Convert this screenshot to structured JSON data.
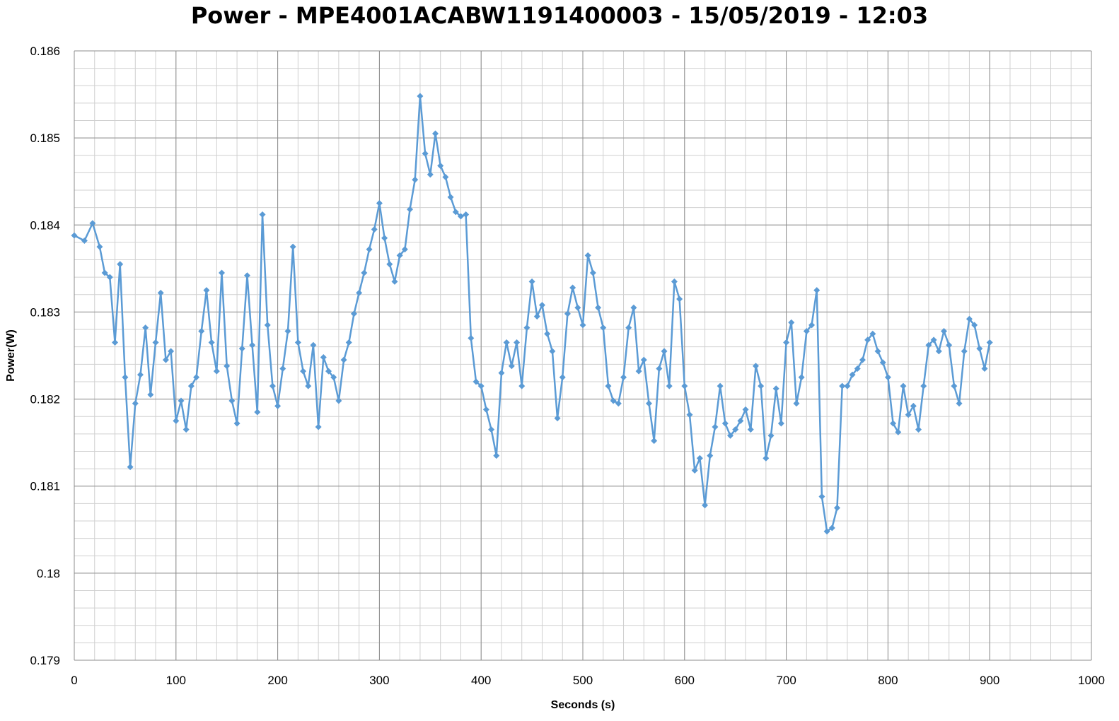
{
  "chart_data": {
    "type": "line",
    "title": "Power - MPE4001ACABW1191400003 - 15/05/2019 - 12:03",
    "xlabel": "Seconds (s)",
    "ylabel": "Power(W)",
    "xlim": [
      0,
      1000
    ],
    "ylim": [
      0.179,
      0.186
    ],
    "x_ticks": [
      "0",
      "100",
      "200",
      "300",
      "400",
      "500",
      "600",
      "700",
      "800",
      "900",
      "1000"
    ],
    "y_ticks": [
      "0.179",
      "0.18",
      "0.181",
      "0.182",
      "0.183",
      "0.184",
      "0.185",
      "0.186"
    ],
    "grid": true,
    "marker": "diamond",
    "series": [
      {
        "color": "#5b9bd5",
        "points": [
          [
            0,
            0.18388
          ],
          [
            10,
            0.18382
          ],
          [
            18,
            0.18402
          ],
          [
            25,
            0.18375
          ],
          [
            30,
            0.18345
          ],
          [
            35,
            0.1834
          ],
          [
            40,
            0.18265
          ],
          [
            45,
            0.18355
          ],
          [
            50,
            0.18225
          ],
          [
            55,
            0.18122
          ],
          [
            60,
            0.18195
          ],
          [
            65,
            0.18228
          ],
          [
            70,
            0.18282
          ],
          [
            75,
            0.18205
          ],
          [
            80,
            0.18265
          ],
          [
            85,
            0.18322
          ],
          [
            90,
            0.18245
          ],
          [
            95,
            0.18255
          ],
          [
            100,
            0.18175
          ],
          [
            105,
            0.18198
          ],
          [
            110,
            0.18165
          ],
          [
            115,
            0.18215
          ],
          [
            120,
            0.18225
          ],
          [
            125,
            0.18278
          ],
          [
            130,
            0.18325
          ],
          [
            135,
            0.18265
          ],
          [
            140,
            0.18232
          ],
          [
            145,
            0.18345
          ],
          [
            150,
            0.18238
          ],
          [
            155,
            0.18198
          ],
          [
            160,
            0.18172
          ],
          [
            165,
            0.18258
          ],
          [
            170,
            0.18342
          ],
          [
            175,
            0.18262
          ],
          [
            180,
            0.18185
          ],
          [
            185,
            0.18412
          ],
          [
            190,
            0.18285
          ],
          [
            195,
            0.18215
          ],
          [
            200,
            0.18192
          ],
          [
            205,
            0.18235
          ],
          [
            210,
            0.18278
          ],
          [
            215,
            0.18375
          ],
          [
            220,
            0.18265
          ],
          [
            225,
            0.18232
          ],
          [
            230,
            0.18215
          ],
          [
            235,
            0.18262
          ],
          [
            240,
            0.18168
          ],
          [
            245,
            0.18248
          ],
          [
            250,
            0.18232
          ],
          [
            255,
            0.18225
          ],
          [
            260,
            0.18198
          ],
          [
            265,
            0.18245
          ],
          [
            270,
            0.18265
          ],
          [
            275,
            0.18298
          ],
          [
            280,
            0.18322
          ],
          [
            285,
            0.18345
          ],
          [
            290,
            0.18372
          ],
          [
            295,
            0.18395
          ],
          [
            300,
            0.18425
          ],
          [
            305,
            0.18385
          ],
          [
            310,
            0.18355
          ],
          [
            315,
            0.18335
          ],
          [
            320,
            0.18365
          ],
          [
            325,
            0.18372
          ],
          [
            330,
            0.18418
          ],
          [
            335,
            0.18452
          ],
          [
            340,
            0.18548
          ],
          [
            345,
            0.18482
          ],
          [
            350,
            0.18458
          ],
          [
            355,
            0.18505
          ],
          [
            360,
            0.18468
          ],
          [
            365,
            0.18455
          ],
          [
            370,
            0.18432
          ],
          [
            375,
            0.18415
          ],
          [
            380,
            0.1841
          ],
          [
            385,
            0.18412
          ],
          [
            390,
            0.1827
          ],
          [
            395,
            0.1822
          ],
          [
            400,
            0.18215
          ],
          [
            405,
            0.18188
          ],
          [
            410,
            0.18165
          ],
          [
            415,
            0.18135
          ],
          [
            420,
            0.1823
          ],
          [
            425,
            0.18265
          ],
          [
            430,
            0.18238
          ],
          [
            435,
            0.18265
          ],
          [
            440,
            0.18215
          ],
          [
            445,
            0.18282
          ],
          [
            450,
            0.18335
          ],
          [
            455,
            0.18295
          ],
          [
            460,
            0.18308
          ],
          [
            465,
            0.18275
          ],
          [
            470,
            0.18255
          ],
          [
            475,
            0.18178
          ],
          [
            480,
            0.18225
          ],
          [
            485,
            0.18298
          ],
          [
            490,
            0.18328
          ],
          [
            495,
            0.18305
          ],
          [
            500,
            0.18285
          ],
          [
            505,
            0.18365
          ],
          [
            510,
            0.18345
          ],
          [
            515,
            0.18305
          ],
          [
            520,
            0.18282
          ],
          [
            525,
            0.18215
          ],
          [
            530,
            0.18198
          ],
          [
            535,
            0.18195
          ],
          [
            540,
            0.18225
          ],
          [
            545,
            0.18282
          ],
          [
            550,
            0.18305
          ],
          [
            555,
            0.18232
          ],
          [
            560,
            0.18245
          ],
          [
            565,
            0.18195
          ],
          [
            570,
            0.18152
          ],
          [
            575,
            0.18235
          ],
          [
            580,
            0.18255
          ],
          [
            585,
            0.18215
          ],
          [
            590,
            0.18335
          ],
          [
            595,
            0.18315
          ],
          [
            600,
            0.18215
          ],
          [
            605,
            0.18182
          ],
          [
            610,
            0.18118
          ],
          [
            615,
            0.18132
          ],
          [
            620,
            0.18078
          ],
          [
            625,
            0.18135
          ],
          [
            630,
            0.18168
          ],
          [
            635,
            0.18215
          ],
          [
            640,
            0.18172
          ],
          [
            645,
            0.18158
          ],
          [
            650,
            0.18165
          ],
          [
            655,
            0.18175
          ],
          [
            660,
            0.18188
          ],
          [
            665,
            0.18165
          ],
          [
            670,
            0.18238
          ],
          [
            675,
            0.18215
          ],
          [
            680,
            0.18132
          ],
          [
            685,
            0.18158
          ],
          [
            690,
            0.18212
          ],
          [
            695,
            0.18172
          ],
          [
            700,
            0.18265
          ],
          [
            705,
            0.18288
          ],
          [
            710,
            0.18195
          ],
          [
            715,
            0.18225
          ],
          [
            720,
            0.18278
          ],
          [
            725,
            0.18285
          ],
          [
            730,
            0.18325
          ],
          [
            735,
            0.18088
          ],
          [
            740,
            0.18048
          ],
          [
            745,
            0.18052
          ],
          [
            750,
            0.18075
          ],
          [
            755,
            0.18215
          ],
          [
            760,
            0.18215
          ],
          [
            765,
            0.18228
          ],
          [
            770,
            0.18235
          ],
          [
            775,
            0.18245
          ],
          [
            780,
            0.18268
          ],
          [
            785,
            0.18275
          ],
          [
            790,
            0.18255
          ],
          [
            795,
            0.18242
          ],
          [
            800,
            0.18225
          ],
          [
            805,
            0.18172
          ],
          [
            810,
            0.18162
          ],
          [
            815,
            0.18215
          ],
          [
            820,
            0.18182
          ],
          [
            825,
            0.18192
          ],
          [
            830,
            0.18165
          ],
          [
            835,
            0.18215
          ],
          [
            840,
            0.18262
          ],
          [
            845,
            0.18268
          ],
          [
            850,
            0.18255
          ],
          [
            855,
            0.18278
          ],
          [
            860,
            0.18262
          ],
          [
            865,
            0.18215
          ],
          [
            870,
            0.18195
          ],
          [
            875,
            0.18255
          ],
          [
            880,
            0.18292
          ],
          [
            885,
            0.18285
          ],
          [
            890,
            0.18258
          ],
          [
            895,
            0.18235
          ],
          [
            900,
            0.18265
          ]
        ]
      }
    ]
  }
}
